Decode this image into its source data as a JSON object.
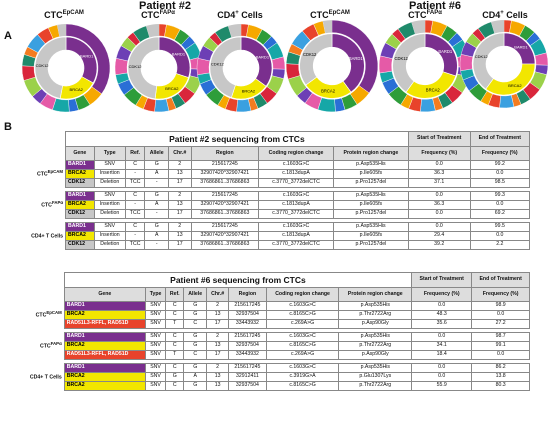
{
  "panelA": {
    "letter": "A",
    "patients": [
      {
        "title": "Patient #2",
        "charts": [
          {
            "title_main": "CTC",
            "title_sup": "EpCAM"
          },
          {
            "title_main": "CTC",
            "title_sup": "FAPα"
          },
          {
            "title_main": "CD4",
            "title_sup": "+",
            "title_tail": " Cells"
          }
        ]
      },
      {
        "title": "Patient #6",
        "charts": [
          {
            "title_main": "CTC",
            "title_sup": "EpCAM"
          },
          {
            "title_main": "CTC",
            "title_sup": "FAPα"
          },
          {
            "title_main": "CD4",
            "title_sup": "+",
            "title_tail": " Cells"
          }
        ]
      }
    ],
    "donut_labels": {
      "brca2": "BRCA2",
      "cdk12": "CDK12",
      "bard1": "BARD1"
    },
    "colors": {
      "bard1": "#7a2f8e",
      "brca2": "#f2e600",
      "cdk12": "#c7c7c7",
      "red": "#e8432b",
      "orange": "#f6a800",
      "green": "#2e9d3a",
      "blue": "#2a6fd6",
      "teal": "#16a7a7",
      "pink": "#e55aa7"
    }
  },
  "panelB": {
    "letter": "B",
    "table1": {
      "title": "Patient #2 sequencing from CTCs",
      "start": "Start of Treatment",
      "end": "End of Treatment",
      "headers": [
        "Gene",
        "Type",
        "Ref.",
        "Allele",
        "Chr.#",
        "Region",
        "Coding region change",
        "Protein region change",
        "Frequency (%)",
        "Frequency (%)"
      ],
      "groups": [
        {
          "label": "CTC",
          "sup": "EpCAM",
          "rows": [
            [
              "BARD1",
              "SNV",
              "C",
              "G",
              "2",
              "215617245",
              "c.1603G>C",
              "p.Asp535His",
              "0.0",
              "99.2"
            ],
            [
              "BRCA2",
              "Insertion",
              "-",
              "A",
              "13",
              "32907420^32907421",
              "c.1813dupA",
              "p.Ile605fs",
              "36.3",
              "0.0"
            ],
            [
              "CDK12",
              "Deletion",
              "TCC",
              "-",
              "17",
              "37686861..37686863",
              "c.3770_3772delCTC",
              "p.Pro1257del",
              "37.1",
              "98.5"
            ]
          ]
        },
        {
          "label": "CTC",
          "sup": "FAPα",
          "rows": [
            [
              "BARD1",
              "SNV",
              "C",
              "G",
              "2",
              "215617245",
              "c.1603G>C",
              "p.Asp535His",
              "0.0",
              "99.3"
            ],
            [
              "BRCA2",
              "Insertion",
              "-",
              "A",
              "13",
              "32907420^32907421",
              "c.1813dupA",
              "p.Ile605fs",
              "36.3",
              "0.0"
            ],
            [
              "CDK12",
              "Deletion",
              "TCC",
              "-",
              "17",
              "37686861..37686863",
              "c.3770_3772delCTC",
              "p.Pro1257del",
              "0.0",
              "69.2"
            ]
          ]
        },
        {
          "label": "CD4+ T Cells",
          "sup": "",
          "rows": [
            [
              "BARD1",
              "SNV",
              "C",
              "G",
              "2",
              "215617245",
              "c.1603G>C",
              "p.Asp535His",
              "0.0",
              "99.5"
            ],
            [
              "BRCA2",
              "Insertion",
              "-",
              "A",
              "13",
              "32907420^32907421",
              "c.1813dupA",
              "p.Ile605fs",
              "29.4",
              "0.0"
            ],
            [
              "CDK12",
              "Deletion",
              "TCC",
              "-",
              "17",
              "37686861..37686863",
              "c.3770_3772delCTC",
              "p.Pro1257del",
              "39.2",
              "2.2"
            ]
          ]
        }
      ]
    },
    "table2": {
      "title": "Patient #6 sequencing from CTCs",
      "start": "Start of Treatment",
      "end": "End of Treatment",
      "headers": [
        "Gene",
        "Type",
        "Ref.",
        "Allele",
        "Chr.#",
        "Region",
        "Coding region change",
        "Protein region change",
        "Frequency (%)",
        "Frequency (%)"
      ],
      "groups": [
        {
          "label": "CTC",
          "sup": "EpCAM",
          "rows": [
            [
              "BARD1",
              "SNV",
              "C",
              "G",
              "2",
              "215617245",
              "c.1603G>C",
              "p.Asp535His",
              "0.0",
              "98.9"
            ],
            [
              "BRCA2",
              "SNV",
              "C",
              "G",
              "13",
              "32937504",
              "c.8165C>G",
              "p.Thr2722Arg",
              "48.3",
              "0.0"
            ],
            [
              "RAD51L3-RFFL, RAD51D",
              "SNV",
              "T",
              "C",
              "17",
              "33443932",
              "c.269A>G",
              "p.Asp90Gly",
              "35.6",
              "27.2"
            ]
          ]
        },
        {
          "label": "CTC",
          "sup": "FAPα",
          "rows": [
            [
              "BARD1",
              "SNV",
              "C",
              "G",
              "2",
              "215617245",
              "c.1603G>C",
              "p.Asp535His",
              "0.0",
              "98.7"
            ],
            [
              "BRCA2",
              "SNV",
              "C",
              "G",
              "13",
              "32937504",
              "c.8165C>G",
              "p.Thr2722Arg",
              "34.1",
              "99.1"
            ],
            [
              "RAD51L3-RFFL, RAD51D",
              "SNV",
              "T",
              "C",
              "17",
              "33443932",
              "c.269A>G",
              "p.Asp90Gly",
              "18.4",
              "0.0"
            ]
          ]
        },
        {
          "label": "CD4+ T Cells",
          "sup": "",
          "rows": [
            [
              "BARD1",
              "SNV",
              "C",
              "G",
              "2",
              "215617245",
              "c.1603G>C",
              "p.Asp535His",
              "0.0",
              "86.2"
            ],
            [
              "BRCA2",
              "SNV",
              "G",
              "A",
              "13",
              "32912411",
              "c.3919G>A",
              "p.Glu1307Lys",
              "0.0",
              "13.8"
            ],
            [
              "BRCA2",
              "SNV",
              "C",
              "G",
              "13",
              "32937504",
              "c.8165C>G",
              "p.Thr2722Arg",
              "55.9",
              "80.3"
            ]
          ]
        }
      ]
    }
  }
}
